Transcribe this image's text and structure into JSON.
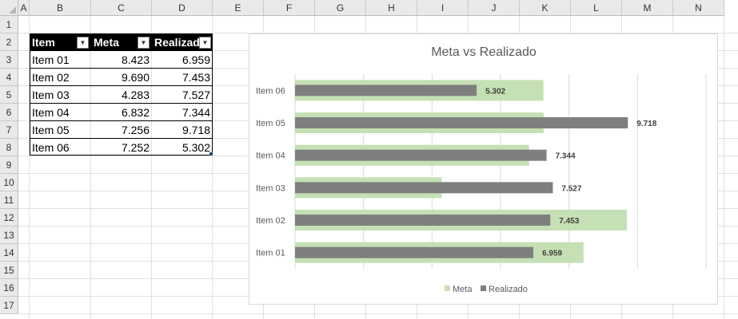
{
  "spreadsheet": {
    "columns": [
      "A",
      "B",
      "C",
      "D",
      "E",
      "F",
      "G",
      "H",
      "I",
      "J",
      "K",
      "L",
      "M",
      "N"
    ],
    "rows": [
      "1",
      "2",
      "3",
      "4",
      "5",
      "6",
      "7",
      "8",
      "9",
      "10",
      "11",
      "12",
      "13",
      "14",
      "15",
      "16",
      "17"
    ]
  },
  "table": {
    "headers": [
      "Item",
      "Meta",
      "Realizado"
    ],
    "rows": [
      [
        "Item 01",
        "8.423",
        "6.959"
      ],
      [
        "Item 02",
        "9.690",
        "7.453"
      ],
      [
        "Item 03",
        "4.283",
        "7.527"
      ],
      [
        "Item 04",
        "6.832",
        "7.344"
      ],
      [
        "Item 05",
        "7.256",
        "9.718"
      ],
      [
        "Item 06",
        "7.252",
        "5.302"
      ]
    ]
  },
  "chart_data": {
    "type": "bar",
    "orientation": "horizontal",
    "title": "Meta vs Realizado",
    "categories": [
      "Item 01",
      "Item 02",
      "Item 03",
      "Item 04",
      "Item 05",
      "Item 06"
    ],
    "series": [
      {
        "name": "Meta",
        "values": [
          8.423,
          9.69,
          4.283,
          6.832,
          7.256,
          7.252
        ],
        "color": "#c5e0b4"
      },
      {
        "name": "Realizado",
        "values": [
          6.959,
          7.453,
          7.527,
          7.344,
          9.718,
          5.302
        ],
        "color": "#7f7f7f"
      }
    ],
    "value_labels": [
      "6.959",
      "7.453",
      "7.527",
      "7.344",
      "9.718",
      "5.302"
    ],
    "xlim": [
      0,
      12
    ],
    "gridlines": true,
    "legend": "bottom"
  },
  "colors": {
    "meta": "#c5e0b4",
    "realizado": "#7f7f7f",
    "header_bg": "#000000"
  }
}
